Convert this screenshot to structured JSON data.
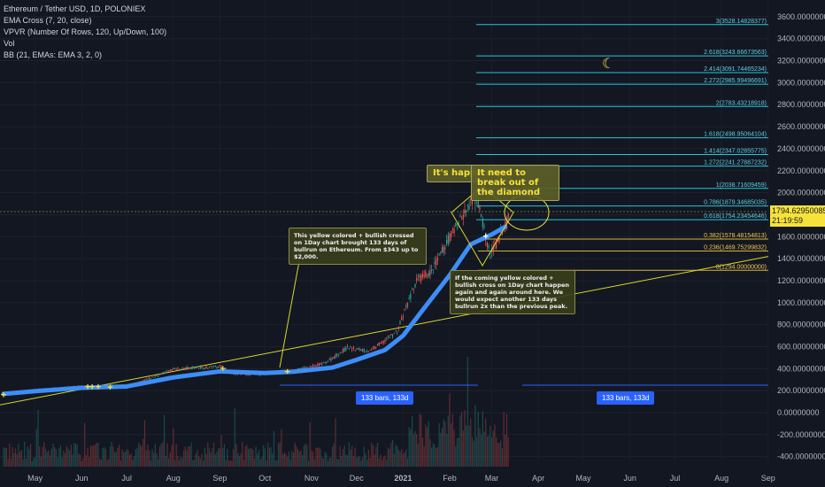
{
  "legend": {
    "symbol": "Ethereum / Tether USD, 1D, POLONIEX",
    "ema": "EMA Cross (7, 20, close)",
    "vpvr": "VPVR (Number Of Rows, 120, Up/Down, 100)",
    "vol": "Vol",
    "bb": "BB (21, EMAs: EMA 3, 2, 0)"
  },
  "price_tag": {
    "price": "1794.62950085",
    "countdown": "21:19:59"
  },
  "annotations": {
    "left_note": "This yellow colored + bullish crossed on 1Day chart brought 133 days of bullrun on Ethereum. From $343 up to $2,000.",
    "right_note": "If the coming yellow colored + bullish cross on 1Day chart happen again and again around here. We would expect another 133 days bullrun 2x than the previous peak.",
    "happening": "It's happening",
    "break_out": "It need to break out of the diamond",
    "moon_icon": "crescent-moon"
  },
  "badges": {
    "left": "133 bars, 133d",
    "right": "133 bars, 133d"
  },
  "colors": {
    "background": "#131722",
    "ema": "#3d8ef7",
    "fib": "#26c6da",
    "trend": "#d7d72a",
    "highlight": "#f7e23a"
  },
  "chart_data": {
    "type": "line",
    "title": "Ethereum / Tether USD, 1D, POLONIEX",
    "x_ticks": [
      "May",
      "Jun",
      "Jul",
      "Aug",
      "Sep",
      "Oct",
      "Nov",
      "Dec",
      "2021",
      "Feb",
      "Mar",
      "Apr",
      "May",
      "Jun",
      "Jul",
      "Aug",
      "Sep"
    ],
    "y_ticks": [
      "3600.00000000",
      "3400.00000000",
      "3200.00000000",
      "3000.00000000",
      "2800.00000000",
      "2600.00000000",
      "2400.00000000",
      "2200.00000000",
      "2000.00000000",
      "1800.00000000",
      "1600.00000000",
      "1400.00000000",
      "1200.00000000",
      "1000.00000000",
      "800.00000000",
      "600.00000000",
      "400.00000000",
      "200.00000000",
      "0.00000000",
      "-200.00000000",
      "-400.00000000"
    ],
    "ylim": [
      -460,
      3700
    ],
    "fib_levels": [
      {
        "label": "3(3528.14828377)",
        "value": 3528.15
      },
      {
        "label": "2.618(3243.66673563)",
        "value": 3243.67
      },
      {
        "label": "2.414(3091.74465234)",
        "value": 3091.74
      },
      {
        "label": "2.272(2985.99496691)",
        "value": 2985.99
      },
      {
        "label": "2(2783.43218918)",
        "value": 2783.43
      },
      {
        "label": "1.618(2498.95064104)",
        "value": 2498.95
      },
      {
        "label": "1.414(2347.02855775)",
        "value": 2347.03
      },
      {
        "label": "1.272(2241.27887232)",
        "value": 2241.28
      },
      {
        "label": "1(2038.71609459)",
        "value": 2038.72
      },
      {
        "label": "0.786(1879.34685035)",
        "value": 1879.35
      },
      {
        "label": "0.618(1754.23454646)",
        "value": 1754.23
      },
      {
        "label": "0.382(1578.48154813)",
        "value": 1578.48
      },
      {
        "label": "0.236(1469.75299832)",
        "value": 1469.75
      },
      {
        "label": "0(1294.00000000)",
        "value": 1294.0
      }
    ],
    "series": [
      {
        "name": "EMA",
        "x": [
          "2020-04-10",
          "2020-05-01",
          "2020-06-01",
          "2020-07-01",
          "2020-08-01",
          "2020-09-01",
          "2020-10-01",
          "2020-10-20",
          "2020-11-15",
          "2020-12-01",
          "2020-12-20",
          "2021-01-01",
          "2021-01-15",
          "2021-02-01",
          "2021-02-15",
          "2021-03-01",
          "2021-03-10"
        ],
        "values": [
          170,
          195,
          225,
          238,
          320,
          375,
          360,
          372,
          410,
          480,
          570,
          700,
          950,
          1250,
          1530,
          1620,
          1690
        ]
      }
    ],
    "buy_markers": [
      "2020-04-10",
      "2020-06-05",
      "2020-06-08",
      "2020-06-12",
      "2020-06-20",
      "2020-09-03",
      "2020-10-16",
      "2021-02-25"
    ],
    "volume_peak": "2021-01-11"
  }
}
